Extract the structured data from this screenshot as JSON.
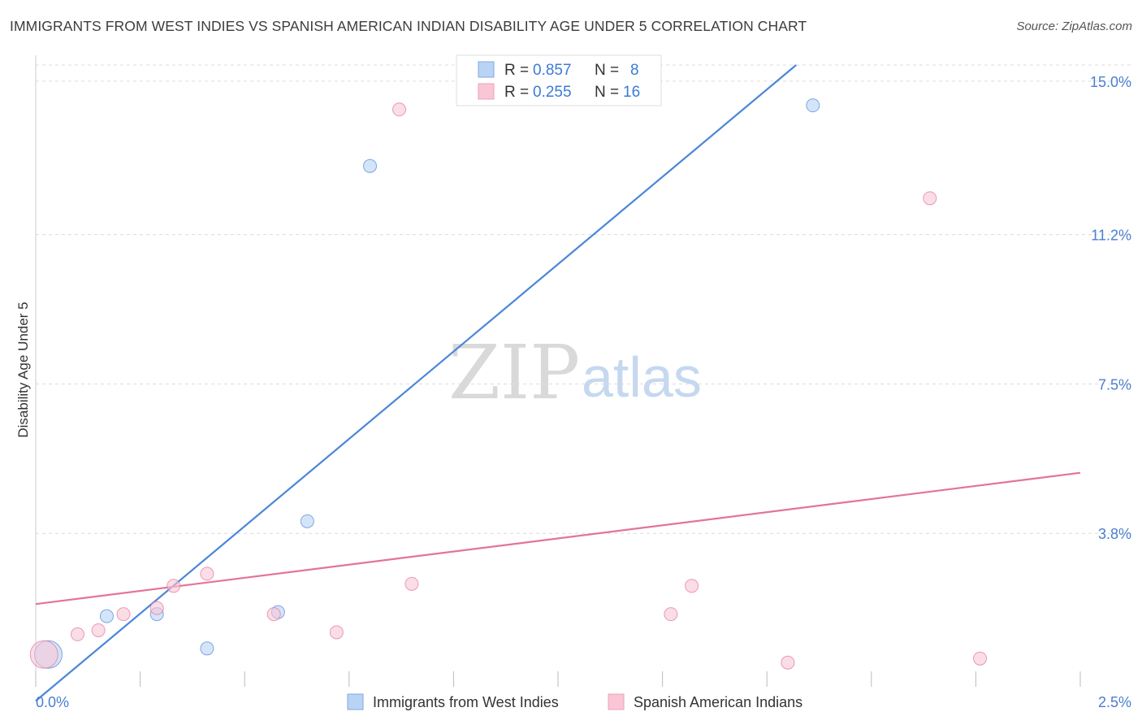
{
  "header": {
    "title": "IMMIGRANTS FROM WEST INDIES VS SPANISH AMERICAN INDIAN DISABILITY AGE UNDER 5 CORRELATION CHART",
    "source": "Source: ZipAtlas.com"
  },
  "watermark": {
    "zip": "ZIP",
    "atlas": "atlas"
  },
  "chart_data": {
    "type": "scatter",
    "title": "IMMIGRANTS FROM WEST INDIES VS SPANISH AMERICAN INDIAN DISABILITY AGE UNDER 5 CORRELATION CHART",
    "xlabel": "",
    "ylabel": "Disability Age Under 5",
    "xlim": [
      0,
      2.5
    ],
    "ylim": [
      0,
      15.4
    ],
    "x_tick_labels": {
      "min": "0.0%",
      "max": "2.5%"
    },
    "y_ticks": [
      {
        "value": 3.8,
        "label": "3.8%"
      },
      {
        "value": 7.5,
        "label": "7.5%"
      },
      {
        "value": 11.2,
        "label": "11.2%"
      },
      {
        "value": 15.0,
        "label": "15.0%"
      }
    ],
    "grid": true,
    "legend_position": "top-center",
    "series": [
      {
        "name": "Immigrants from West Indies",
        "color": "#4a86d9",
        "fill": "#b9d3f5",
        "r_label": "R = ",
        "r": "0.857",
        "n_label": "N = ",
        "n": "8",
        "points": [
          {
            "x": 0.03,
            "y": 0.8,
            "size": "large"
          },
          {
            "x": 0.17,
            "y": 1.75
          },
          {
            "x": 0.29,
            "y": 1.8
          },
          {
            "x": 0.41,
            "y": 0.95
          },
          {
            "x": 0.58,
            "y": 1.85
          },
          {
            "x": 0.65,
            "y": 4.1
          },
          {
            "x": 0.8,
            "y": 12.9
          },
          {
            "x": 1.86,
            "y": 14.4
          }
        ],
        "trendline": {
          "x1": 0.0,
          "y1": -0.35,
          "x2": 1.82,
          "y2": 15.4
        }
      },
      {
        "name": "Spanish American Indians",
        "color": "#e3739a",
        "fill": "#f9c6d5",
        "r_label": "R = ",
        "r": "0.255",
        "n_label": "N = ",
        "n": "16",
        "points": [
          {
            "x": 0.02,
            "y": 0.8,
            "size": "large"
          },
          {
            "x": 0.1,
            "y": 1.3
          },
          {
            "x": 0.15,
            "y": 1.4
          },
          {
            "x": 0.21,
            "y": 1.8
          },
          {
            "x": 0.29,
            "y": 1.95
          },
          {
            "x": 0.33,
            "y": 2.5
          },
          {
            "x": 0.41,
            "y": 2.8
          },
          {
            "x": 0.57,
            "y": 1.8
          },
          {
            "x": 0.72,
            "y": 1.35
          },
          {
            "x": 0.87,
            "y": 14.3
          },
          {
            "x": 0.9,
            "y": 2.55
          },
          {
            "x": 1.52,
            "y": 1.8
          },
          {
            "x": 1.57,
            "y": 2.5
          },
          {
            "x": 1.8,
            "y": 0.6
          },
          {
            "x": 2.14,
            "y": 12.1
          },
          {
            "x": 2.26,
            "y": 0.7
          }
        ],
        "trendline": {
          "x1": 0.0,
          "y1": 2.05,
          "x2": 2.5,
          "y2": 5.3
        }
      }
    ]
  }
}
